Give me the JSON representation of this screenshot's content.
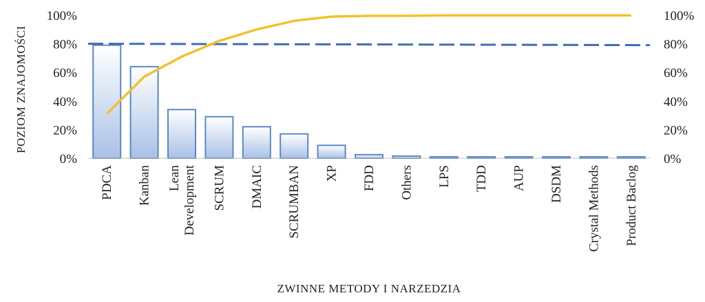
{
  "chart_data": {
    "type": "bar",
    "categories": [
      "PDCA",
      "Kanban",
      [
        "Lean",
        "Development"
      ],
      "SCRUM",
      "DMAIC",
      "SCRUMBAN",
      "XP",
      "FDD",
      "Others",
      "LPS",
      "TDD",
      "AUP",
      "DSDM",
      "Crystal Methods",
      "Product  Baclog"
    ],
    "values": [
      79,
      64,
      34,
      29,
      22,
      17,
      9,
      2.5,
      1.5,
      1,
      1,
      1,
      1,
      1,
      1
    ],
    "cumulative": [
      31,
      57,
      71,
      82,
      90,
      96,
      99,
      99.5,
      99.5,
      99.8,
      99.8,
      99.8,
      99.8,
      99.8,
      99.8
    ],
    "threshold": 80,
    "xlabel": "ZWINNE METODY I NARZEDZIA",
    "ylabel": "POZIOM ZNAJOMOŚCI",
    "ylim": [
      0,
      100
    ],
    "yticks": [
      "0%",
      "20%",
      "40%",
      "60%",
      "80%",
      "100%"
    ],
    "y2ticks": [
      "0%",
      "20%",
      "40%",
      "60%",
      "80%",
      "100%"
    ],
    "grid": false,
    "colors": {
      "bar_top": "#ffffff",
      "bar_bottom": "#a9c1e6",
      "bar_stroke": "#5b87c8",
      "cumulative_line": "#f2c12e",
      "threshold_line": "#3f6cb5"
    }
  }
}
